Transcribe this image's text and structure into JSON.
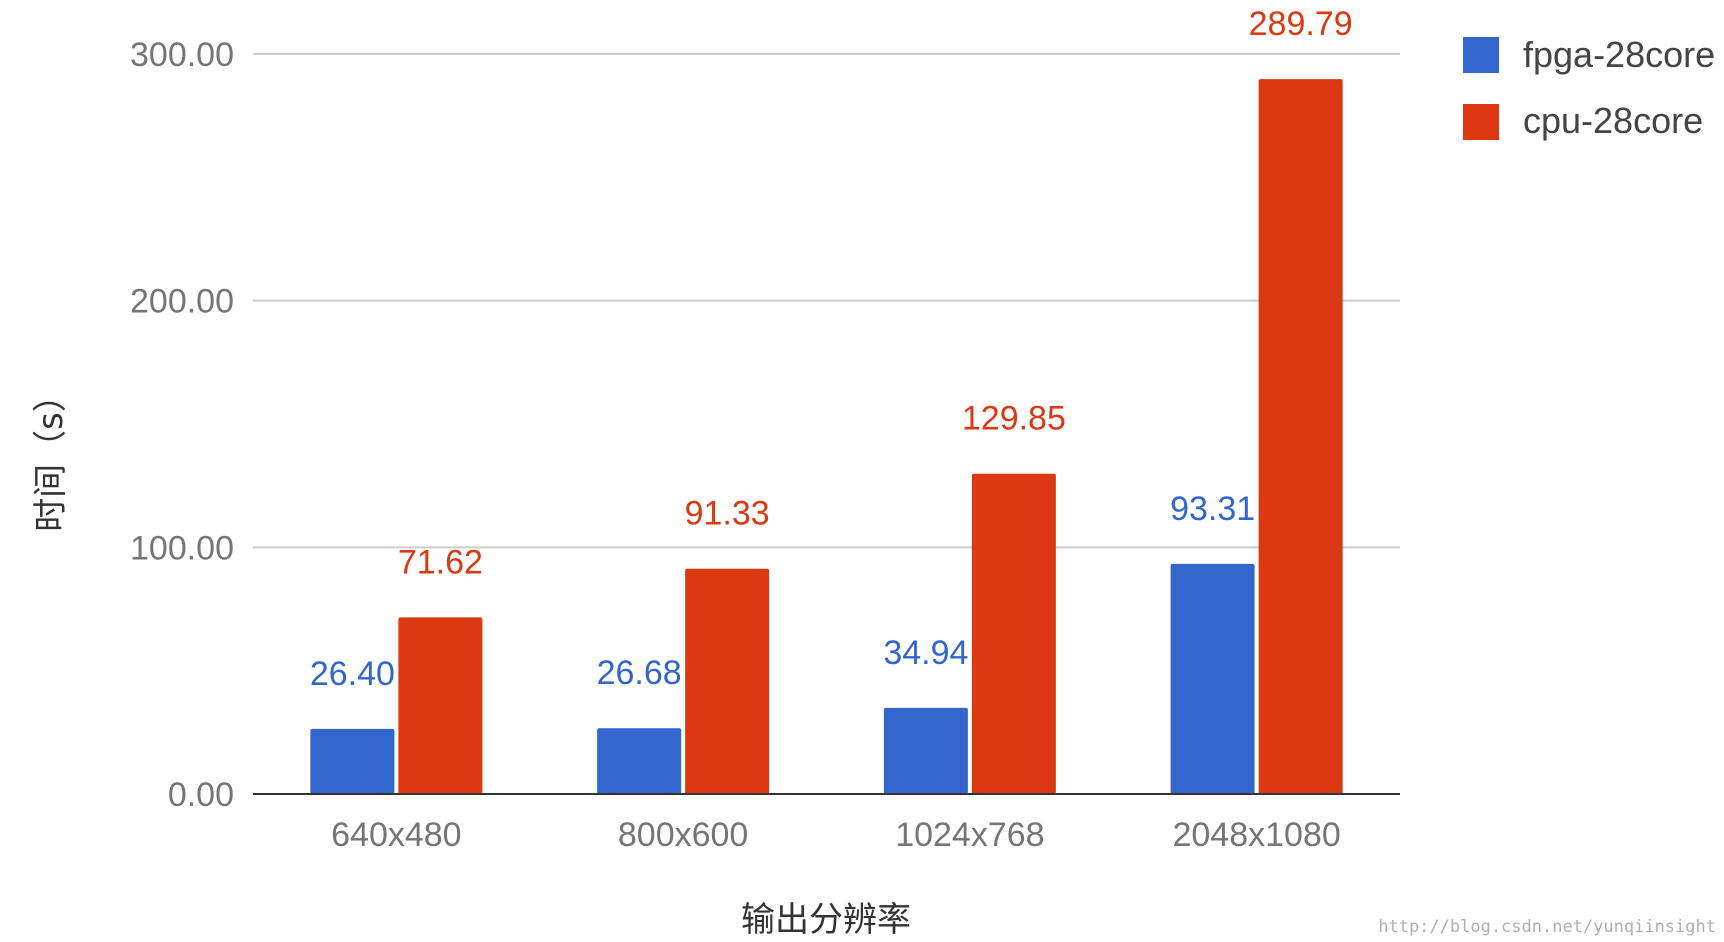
{
  "chart_data": {
    "type": "bar",
    "title": "",
    "xlabel": "输出分辨率",
    "ylabel": "时间（s）",
    "categories": [
      "640x480",
      "800x600",
      "1024x768",
      "2048x1080"
    ],
    "series": [
      {
        "name": "fpga-28core",
        "color": "#3366cc",
        "values": [
          26.4,
          26.68,
          34.94,
          93.31
        ],
        "labels": [
          "26.40",
          "26.68",
          "34.94",
          "93.31"
        ]
      },
      {
        "name": "cpu-28core",
        "color": "#dc3912",
        "values": [
          71.62,
          91.33,
          129.85,
          289.79
        ],
        "labels": [
          "71.62",
          "91.33",
          "129.85",
          "289.79"
        ]
      }
    ],
    "ylim": [
      0,
      300
    ],
    "yticks": [
      0,
      100,
      200,
      300
    ],
    "ytick_labels": [
      "0.00",
      "100.00",
      "200.00",
      "300.00"
    ],
    "grid": true,
    "legend_position": "top-right"
  },
  "watermark": "http://blog.csdn.net/yunqiinsight"
}
